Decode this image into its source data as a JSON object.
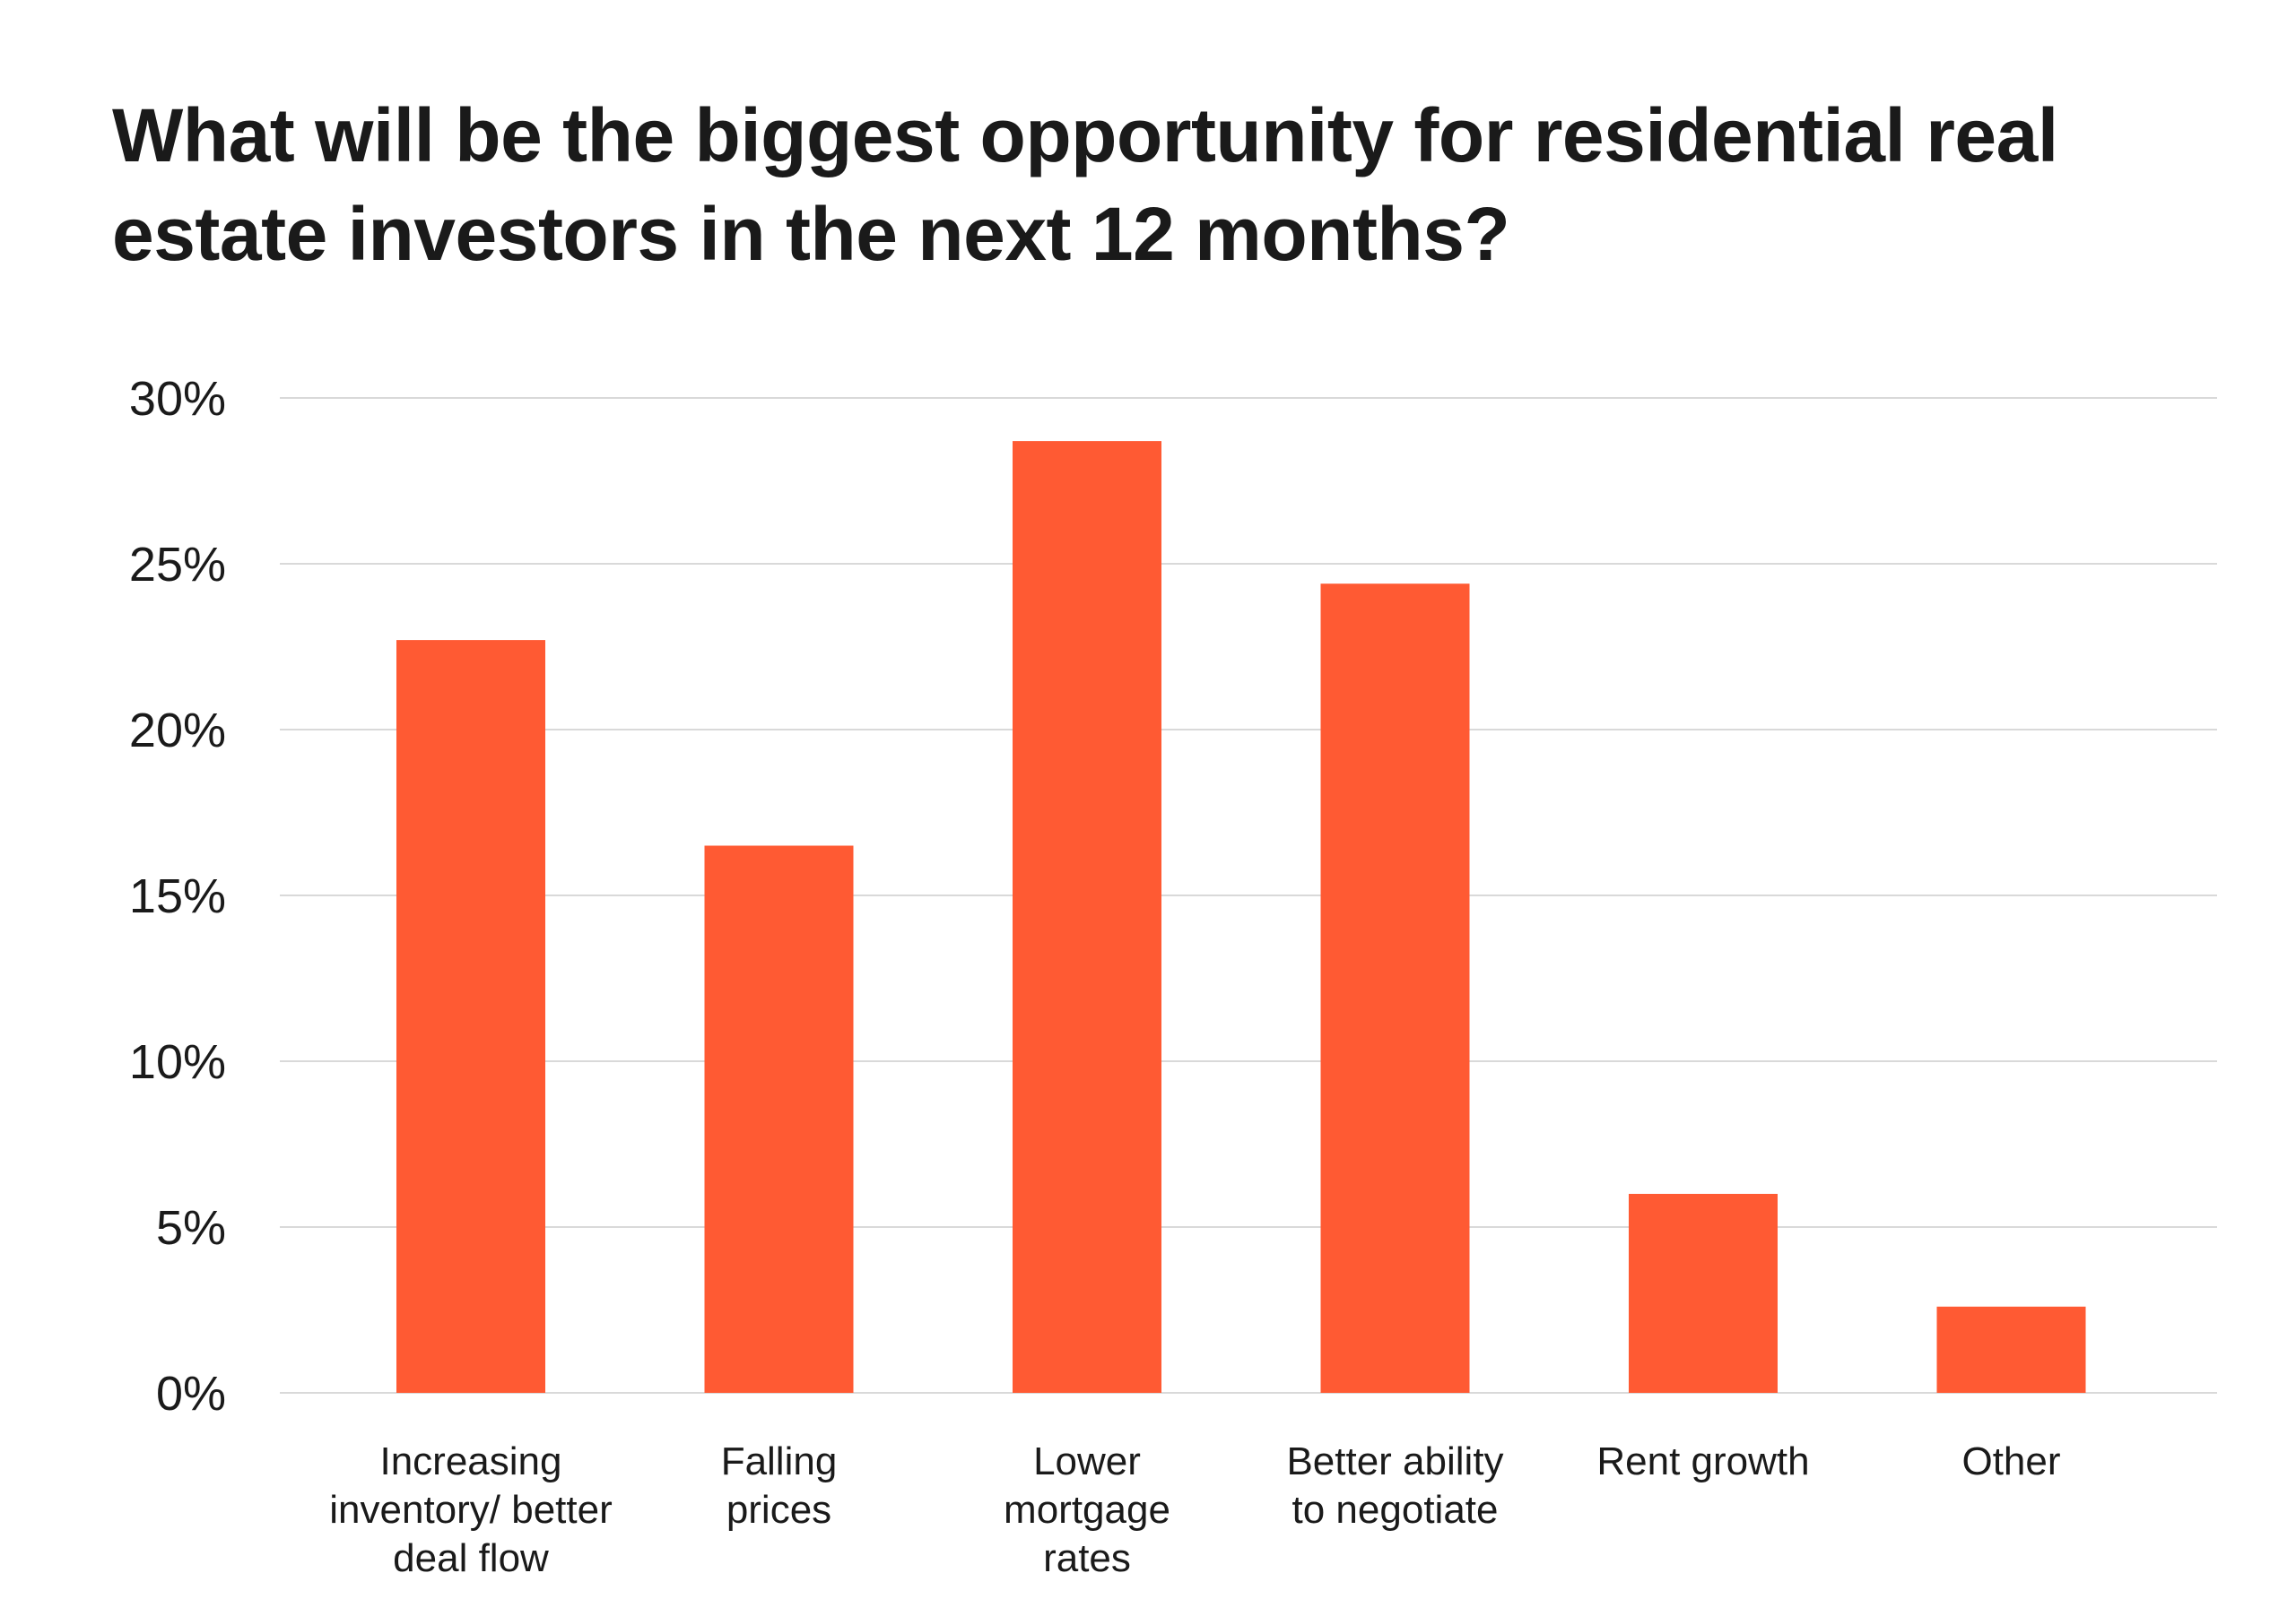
{
  "chart_data": {
    "type": "bar",
    "title": "What will be the biggest opportunity for residential real estate investors in the next 12 months?",
    "xlabel": "",
    "ylabel": "",
    "categories": [
      "Increasing inventory/ better deal flow",
      "Falling prices",
      "Lower mortgage rates",
      "Better ability to negotiate",
      "Rent growth",
      "Other"
    ],
    "category_label_lines": [
      [
        "Increasing",
        "inventory/ better",
        "deal flow"
      ],
      [
        "Falling",
        "prices"
      ],
      [
        "Lower",
        "mortgage",
        "rates"
      ],
      [
        "Better ability",
        "to negotiate"
      ],
      [
        "Rent growth"
      ],
      [
        "Other"
      ]
    ],
    "values": [
      22.7,
      16.5,
      28.7,
      24.4,
      6.0,
      2.6
    ],
    "ylim": [
      0,
      30
    ],
    "yticks": [
      0,
      5,
      10,
      15,
      20,
      25,
      30
    ],
    "ytick_labels": [
      "0%",
      "5%",
      "10%",
      "15%",
      "20%",
      "25%",
      "30%"
    ],
    "grid": true,
    "legend": "none",
    "bar_color": "#FF5A33"
  }
}
